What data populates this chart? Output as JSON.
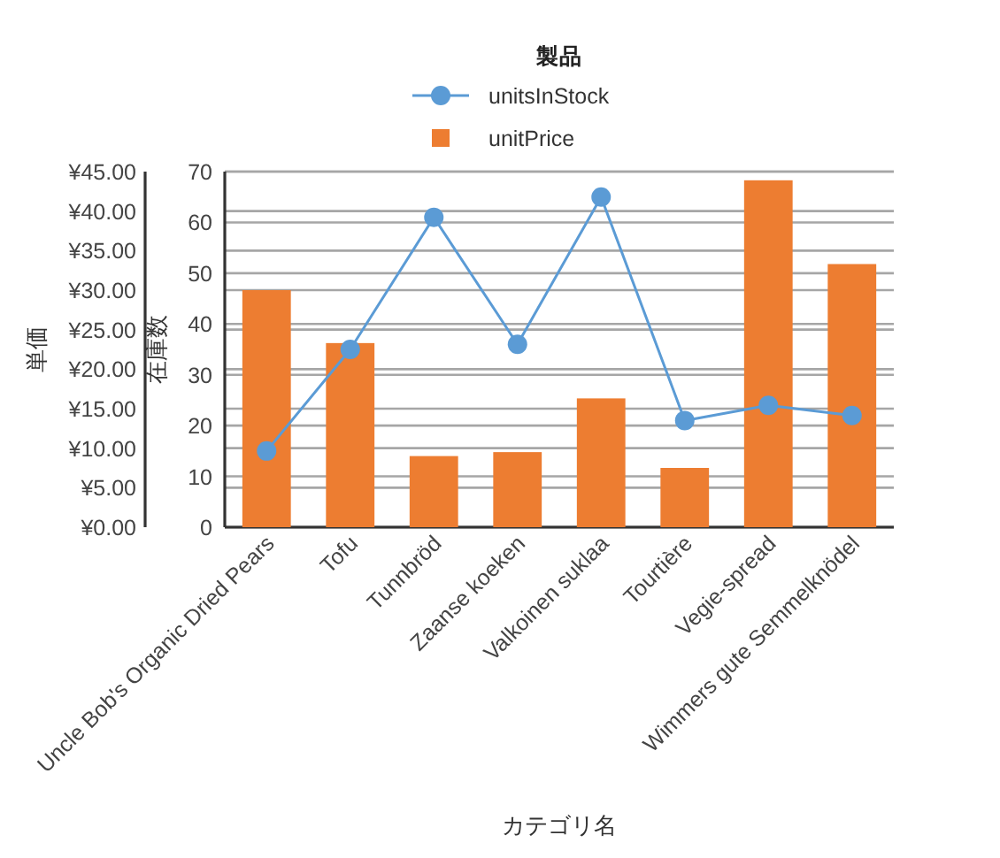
{
  "chart_data": {
    "type": "bar",
    "categories": [
      "Uncle Bob's Organic Dried Pears",
      "Tofu",
      "Tunnbröd",
      "Zaanse koeken",
      "Valkoinen suklaa",
      "Tourtière",
      "Vegie-spread",
      "Wimmers gute Semmelknödel"
    ],
    "series": [
      {
        "name": "unitsInStock",
        "type": "line",
        "axis": "y2",
        "color": "#5b9bd5",
        "values": [
          15,
          35,
          61,
          36,
          65,
          21,
          24,
          22
        ]
      },
      {
        "name": "unitPrice",
        "color": "#ed7d31",
        "values": [
          30,
          23.3,
          9,
          9.5,
          16.3,
          7.5,
          43.9,
          33.3
        ]
      }
    ],
    "xlabel": "カテゴリ名",
    "ylabel": "単価",
    "y2label": "在庫数",
    "legend_title": "製品",
    "legend": "top",
    "marker": "circle",
    "grid": true,
    "ylim": [
      0,
      45
    ],
    "yticks": [
      {
        "value": 0,
        "label": "¥0.00"
      },
      {
        "value": 5,
        "label": "¥5.00"
      },
      {
        "value": 10,
        "label": "¥10.00"
      },
      {
        "value": 15,
        "label": "¥15.00"
      },
      {
        "value": 20,
        "label": "¥20.00"
      },
      {
        "value": 25,
        "label": "¥25.00"
      },
      {
        "value": 30,
        "label": "¥30.00"
      },
      {
        "value": 35,
        "label": "¥35.00"
      },
      {
        "value": 40,
        "label": "¥40.00"
      },
      {
        "value": 45,
        "label": "¥45.00"
      }
    ],
    "y2lim": [
      0,
      70
    ],
    "y2ticks": [
      0,
      10,
      20,
      30,
      40,
      50,
      60,
      70
    ]
  }
}
